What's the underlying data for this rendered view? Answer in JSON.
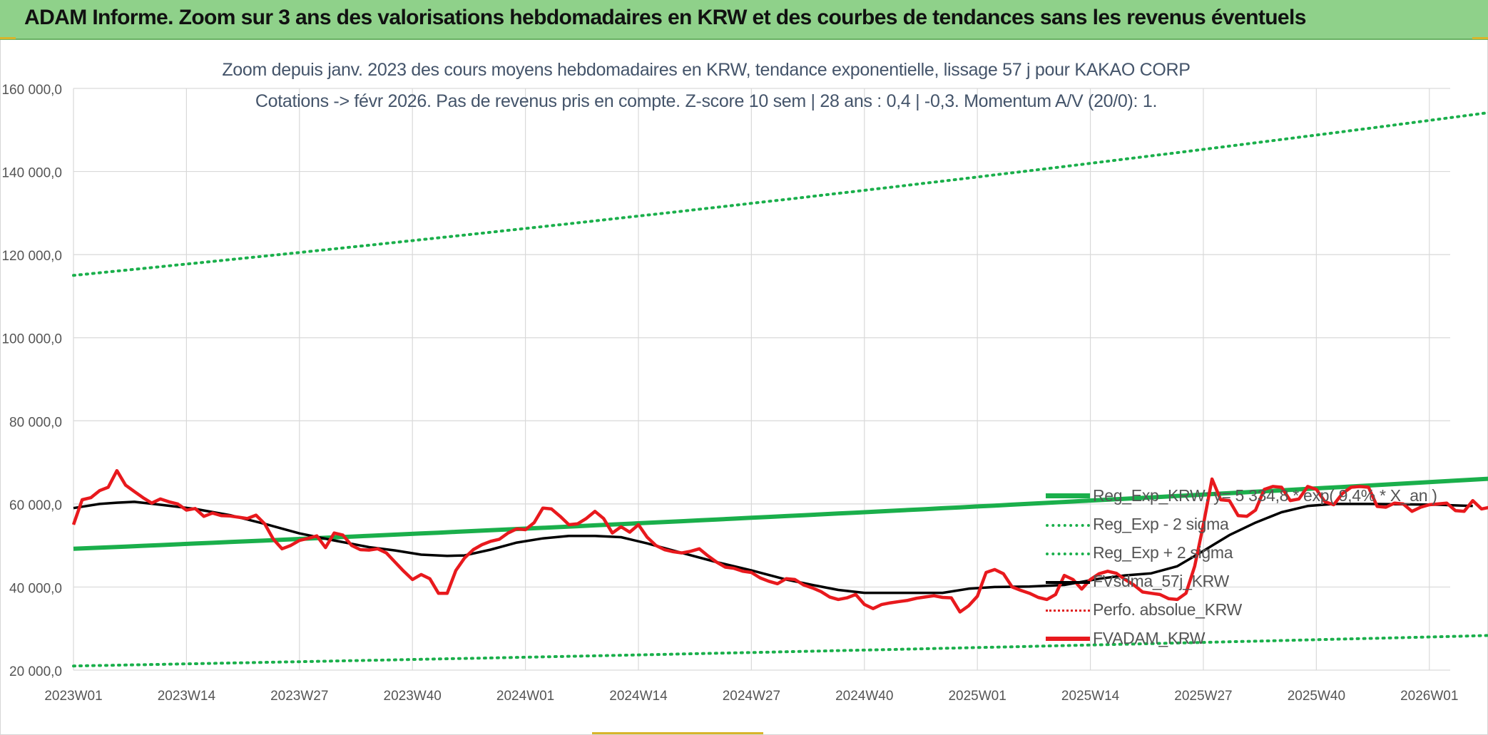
{
  "banner": {
    "title": "ADAM Informe. Zoom sur 3 ans des valorisations hebdomadaires en KRW et des courbes de tendances sans les revenus éventuels"
  },
  "subtitle": {
    "line1": "Zoom depuis janv. 2023 des cours moyens hebdomadaires en KRW, tendance exponentielle, lissage 57 j pour KAKAO CORP",
    "line2": "Cotations -> févr 2026. Pas de revenus pris en compte. Z-score 10 sem | 28 ans : 0,4 | -0,3. Momentum A/V (20/0): 1."
  },
  "colors": {
    "trend": "#1aaf4b",
    "sigma": "#1aaf4b",
    "sma": "#000000",
    "perfo": "#e02020",
    "price": "#e8191d",
    "grid": "#d9d9d9",
    "axis_text": "#555555",
    "banner": "#8fd18a"
  },
  "chart_data": {
    "type": "line",
    "x_tick_labels": [
      "2023W01",
      "2023W14",
      "2023W27",
      "2023W40",
      "2024W01",
      "2024W14",
      "2024W27",
      "2024W40",
      "2025W01",
      "2025W14",
      "2025W27",
      "2025W40",
      "2026W01"
    ],
    "x_tick_weeks": [
      0,
      13,
      26,
      39,
      52,
      65,
      78,
      91,
      104,
      117,
      130,
      143,
      156
    ],
    "y_tick_labels": [
      "20 000,0",
      "40 000,0",
      "60 000,0",
      "80 000,0",
      "100 000,0",
      "120 000,0",
      "140 000,0",
      "160 000,0"
    ],
    "ylim": [
      20000,
      160000
    ],
    "xlim_weeks": [
      0,
      164
    ],
    "grid": true,
    "legend_position": "right",
    "series": [
      {
        "name": "Reg_Exp_KRW: y= 5 334,8 * exp( 9,4% * X_an )",
        "style": "solid-thick",
        "start": 49200,
        "end": 66200
      },
      {
        "name": "Reg_Exp - 2 sigma",
        "style": "dotted",
        "start": 21000,
        "end": 28400
      },
      {
        "name": "Reg_Exp + 2 sigma",
        "style": "dotted",
        "start": 115000,
        "end": 154500
      },
      {
        "name": "FVsdma_57j_KRW",
        "style": "solid",
        "points": [
          [
            0,
            59000
          ],
          [
            3,
            60000
          ],
          [
            5,
            60300
          ],
          [
            7,
            60500
          ],
          [
            10,
            59800
          ],
          [
            14,
            58800
          ],
          [
            18,
            57300
          ],
          [
            22,
            55200
          ],
          [
            26,
            52900
          ],
          [
            30,
            51200
          ],
          [
            34,
            49600
          ],
          [
            37,
            48800
          ],
          [
            40,
            47800
          ],
          [
            43,
            47500
          ],
          [
            45,
            47600
          ],
          [
            48,
            49000
          ],
          [
            51,
            50700
          ],
          [
            54,
            51700
          ],
          [
            57,
            52300
          ],
          [
            60,
            52300
          ],
          [
            63,
            52000
          ],
          [
            66,
            50500
          ],
          [
            70,
            48200
          ],
          [
            74,
            46000
          ],
          [
            78,
            44000
          ],
          [
            82,
            41800
          ],
          [
            85,
            40500
          ],
          [
            88,
            39300
          ],
          [
            91,
            38600
          ],
          [
            96,
            38600
          ],
          [
            100,
            38600
          ],
          [
            103,
            39600
          ],
          [
            106,
            40000
          ],
          [
            110,
            40100
          ],
          [
            114,
            40500
          ],
          [
            118,
            42000
          ],
          [
            121,
            42800
          ],
          [
            124,
            43300
          ],
          [
            127,
            45000
          ],
          [
            130,
            48700
          ],
          [
            133,
            52500
          ],
          [
            136,
            55500
          ],
          [
            139,
            58000
          ],
          [
            142,
            59500
          ],
          [
            145,
            60000
          ],
          [
            149,
            60000
          ],
          [
            153,
            59900
          ],
          [
            157,
            59800
          ],
          [
            161,
            59500
          ]
        ]
      },
      {
        "name": "Perfo. absolue_KRW",
        "style": "dotted",
        "points": []
      },
      {
        "name": "FVADAM_KRW",
        "style": "solid-thick",
        "points": [
          [
            0,
            55000
          ],
          [
            1,
            61000
          ],
          [
            2,
            61500
          ],
          [
            3,
            63200
          ],
          [
            4,
            64000
          ],
          [
            5,
            68000
          ],
          [
            6,
            64500
          ],
          [
            7,
            63000
          ],
          [
            8,
            61500
          ],
          [
            9,
            60200
          ],
          [
            10,
            61200
          ],
          [
            11,
            60500
          ],
          [
            12,
            60000
          ],
          [
            13,
            58500
          ],
          [
            14,
            58900
          ],
          [
            15,
            57000
          ],
          [
            16,
            57800
          ],
          [
            17,
            57200
          ],
          [
            18,
            57100
          ],
          [
            19,
            56800
          ],
          [
            20,
            56500
          ],
          [
            21,
            57300
          ],
          [
            22,
            55200
          ],
          [
            23,
            51500
          ],
          [
            24,
            49200
          ],
          [
            25,
            50000
          ],
          [
            26,
            51200
          ],
          [
            27,
            51700
          ],
          [
            28,
            52300
          ],
          [
            29,
            49500
          ],
          [
            30,
            53000
          ],
          [
            31,
            52500
          ],
          [
            32,
            50000
          ],
          [
            33,
            49000
          ],
          [
            34,
            48900
          ],
          [
            35,
            49200
          ],
          [
            36,
            48200
          ],
          [
            37,
            46000
          ],
          [
            38,
            43800
          ],
          [
            39,
            41800
          ],
          [
            40,
            43000
          ],
          [
            41,
            42000
          ],
          [
            42,
            38500
          ],
          [
            43,
            38500
          ],
          [
            44,
            44000
          ],
          [
            45,
            47000
          ],
          [
            46,
            49000
          ],
          [
            47,
            50200
          ],
          [
            48,
            51000
          ],
          [
            49,
            51500
          ],
          [
            50,
            53000
          ],
          [
            51,
            54000
          ],
          [
            52,
            53800
          ],
          [
            53,
            55500
          ],
          [
            54,
            59000
          ],
          [
            55,
            58800
          ],
          [
            56,
            57000
          ],
          [
            57,
            55000
          ],
          [
            58,
            55200
          ],
          [
            59,
            56500
          ],
          [
            60,
            58200
          ],
          [
            61,
            56500
          ],
          [
            62,
            53000
          ],
          [
            63,
            54500
          ],
          [
            64,
            53200
          ],
          [
            65,
            55000
          ],
          [
            66,
            52000
          ],
          [
            67,
            50000
          ],
          [
            68,
            49000
          ],
          [
            69,
            48500
          ],
          [
            70,
            48200
          ],
          [
            71,
            48600
          ],
          [
            72,
            49200
          ],
          [
            73,
            47500
          ],
          [
            74,
            46000
          ],
          [
            75,
            44800
          ],
          [
            76,
            44500
          ],
          [
            77,
            43800
          ],
          [
            78,
            43500
          ],
          [
            79,
            42200
          ],
          [
            80,
            41400
          ],
          [
            81,
            40800
          ],
          [
            82,
            42000
          ],
          [
            83,
            41800
          ],
          [
            84,
            40500
          ],
          [
            85,
            39800
          ],
          [
            86,
            38900
          ],
          [
            87,
            37600
          ],
          [
            88,
            37000
          ],
          [
            89,
            37400
          ],
          [
            90,
            38200
          ],
          [
            91,
            35800
          ],
          [
            92,
            34800
          ],
          [
            93,
            35800
          ],
          [
            94,
            36200
          ],
          [
            95,
            36500
          ],
          [
            96,
            36800
          ],
          [
            97,
            37300
          ],
          [
            98,
            37600
          ],
          [
            99,
            37900
          ],
          [
            100,
            37500
          ],
          [
            101,
            37400
          ],
          [
            102,
            34000
          ],
          [
            103,
            35500
          ],
          [
            104,
            37800
          ],
          [
            105,
            43500
          ],
          [
            106,
            44200
          ],
          [
            107,
            43200
          ],
          [
            108,
            40000
          ],
          [
            109,
            39200
          ],
          [
            110,
            38500
          ],
          [
            111,
            37500
          ],
          [
            112,
            37000
          ],
          [
            113,
            38200
          ],
          [
            114,
            42800
          ],
          [
            115,
            41800
          ],
          [
            116,
            39500
          ],
          [
            117,
            41800
          ],
          [
            118,
            43200
          ],
          [
            119,
            43800
          ],
          [
            120,
            43300
          ],
          [
            121,
            41800
          ],
          [
            122,
            40500
          ],
          [
            123,
            38800
          ],
          [
            124,
            38500
          ],
          [
            125,
            38200
          ],
          [
            126,
            37200
          ],
          [
            127,
            37000
          ],
          [
            128,
            38500
          ],
          [
            129,
            45000
          ],
          [
            130,
            55000
          ],
          [
            131,
            66000
          ],
          [
            132,
            61000
          ],
          [
            133,
            60800
          ],
          [
            134,
            57200
          ],
          [
            135,
            57000
          ],
          [
            136,
            58500
          ],
          [
            137,
            63500
          ],
          [
            138,
            64200
          ],
          [
            139,
            64000
          ],
          [
            140,
            60800
          ],
          [
            141,
            61200
          ],
          [
            142,
            64200
          ],
          [
            143,
            63500
          ],
          [
            144,
            60500
          ],
          [
            145,
            59800
          ],
          [
            146,
            62500
          ],
          [
            147,
            64000
          ],
          [
            148,
            64200
          ],
          [
            149,
            64000
          ],
          [
            150,
            59400
          ],
          [
            151,
            59200
          ],
          [
            152,
            60200
          ],
          [
            153,
            60000
          ],
          [
            154,
            58200
          ],
          [
            155,
            59200
          ],
          [
            156,
            59800
          ],
          [
            157,
            60000
          ],
          [
            158,
            60200
          ],
          [
            159,
            58400
          ],
          [
            160,
            58200
          ],
          [
            161,
            60800
          ],
          [
            162,
            58800
          ],
          [
            163,
            59200
          ],
          [
            164,
            58400
          ],
          [
            165,
            59600
          ]
        ]
      }
    ]
  }
}
